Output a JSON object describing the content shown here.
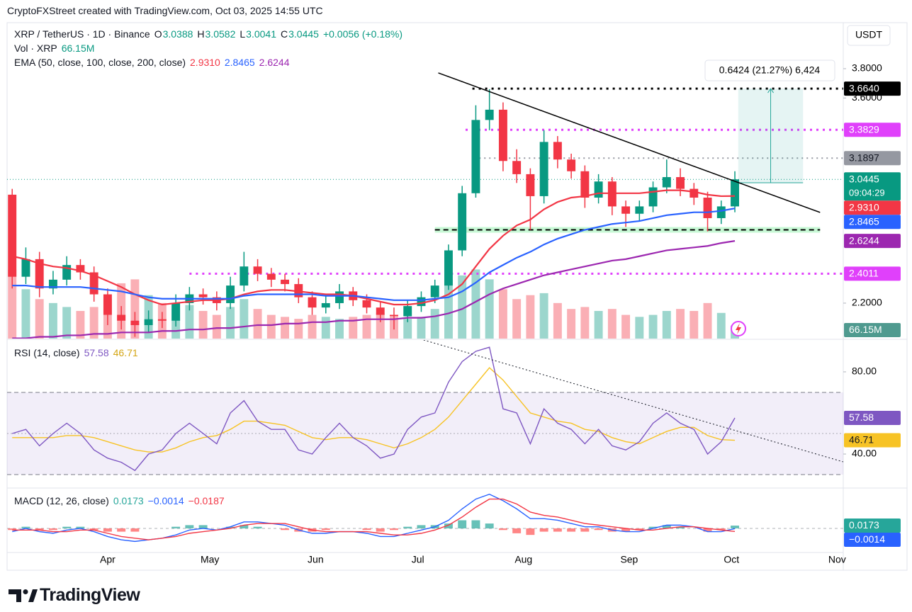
{
  "header": {
    "text": "CryptoFXStreet created with TradingView.com, Oct 03, 2025 14:55 UTC"
  },
  "footer": {
    "logo": "TradingView"
  },
  "chart_data": {
    "type": "candlestick",
    "currency": "USDT",
    "symbol": "XRP / TetherUS · 1D · Binance",
    "ohlc_legend": [
      {
        "key": "O",
        "value": "3.0388"
      },
      {
        "key": "H",
        "value": "3.0582"
      },
      {
        "key": "L",
        "value": "3.0041"
      },
      {
        "key": "C",
        "value": "3.0445"
      }
    ],
    "change": "+0.0056 (+0.18%)",
    "up_color": "#089981",
    "down_color": "#f23645",
    "x": [
      2,
      6,
      10,
      14,
      18,
      22,
      26,
      30,
      34,
      38,
      42,
      46,
      50,
      54,
      58,
      62,
      66,
      70,
      74,
      78,
      82,
      86,
      90,
      94,
      98,
      102,
      106,
      110,
      114,
      118,
      122,
      126,
      130,
      134,
      138,
      142,
      146,
      150,
      154,
      158,
      162,
      166,
      170,
      174,
      178,
      182,
      186,
      190,
      194,
      198,
      202,
      206,
      210,
      214
    ],
    "xlim": [
      0.5,
      245.8
    ],
    "xticks": [
      {
        "value": 30,
        "label": "Apr"
      },
      {
        "value": 60,
        "label": "May"
      },
      {
        "value": 91,
        "label": "Jun"
      },
      {
        "value": 121,
        "label": "Jul"
      },
      {
        "value": 152,
        "label": "Aug"
      },
      {
        "value": 183,
        "label": "Sep"
      },
      {
        "value": 213,
        "label": "Oct"
      },
      {
        "value": 244,
        "label": "Nov"
      }
    ],
    "open": [
      2.94,
      2.38,
      2.5,
      2.3,
      2.36,
      2.46,
      2.41,
      2.26,
      2.12,
      2.08,
      2.05,
      2.09,
      2.08,
      2.2,
      2.26,
      2.24,
      2.2,
      2.32,
      2.45,
      2.4,
      2.36,
      2.33,
      2.24,
      2.17,
      2.2,
      2.28,
      2.22,
      2.17,
      2.12,
      2.11,
      2.18,
      2.24,
      2.32,
      2.56,
      2.95,
      3.45,
      3.52,
      3.17,
      3.08,
      2.93,
      3.3,
      3.18,
      3.1,
      2.92,
      3.03,
      2.86,
      2.81,
      2.86,
      2.99,
      3.06,
      2.98,
      2.92,
      2.78,
      2.86
    ],
    "high": [
      2.98,
      2.58,
      2.55,
      2.42,
      2.52,
      2.5,
      2.45,
      2.3,
      2.18,
      2.14,
      2.15,
      2.14,
      2.26,
      2.31,
      2.3,
      2.28,
      2.38,
      2.55,
      2.5,
      2.44,
      2.4,
      2.37,
      2.28,
      2.25,
      2.33,
      2.31,
      2.26,
      2.21,
      2.17,
      2.22,
      2.28,
      2.36,
      2.6,
      3.0,
      3.55,
      3.66,
      3.57,
      3.25,
      3.12,
      3.38,
      3.34,
      3.22,
      3.14,
      3.08,
      3.06,
      2.9,
      2.9,
      3.03,
      3.18,
      3.12,
      3.02,
      2.96,
      2.9,
      3.1
    ],
    "low": [
      2.3,
      2.33,
      2.24,
      2.26,
      2.32,
      2.36,
      2.21,
      2.05,
      2.02,
      1.97,
      2.0,
      2.03,
      2.04,
      2.15,
      2.19,
      2.15,
      2.16,
      2.28,
      2.35,
      2.31,
      2.28,
      2.2,
      2.12,
      2.13,
      2.16,
      2.18,
      2.13,
      2.07,
      2.02,
      2.07,
      2.14,
      2.2,
      2.29,
      2.52,
      2.92,
      3.38,
      3.1,
      3.02,
      2.7,
      2.88,
      3.12,
      3.05,
      2.85,
      2.88,
      2.8,
      2.72,
      2.76,
      2.82,
      2.95,
      2.93,
      2.87,
      2.69,
      2.74,
      2.82
    ],
    "close": [
      2.38,
      2.5,
      2.3,
      2.36,
      2.46,
      2.41,
      2.26,
      2.12,
      2.08,
      2.05,
      2.09,
      2.08,
      2.2,
      2.26,
      2.24,
      2.2,
      2.32,
      2.45,
      2.4,
      2.36,
      2.33,
      2.24,
      2.17,
      2.2,
      2.28,
      2.22,
      2.17,
      2.12,
      2.11,
      2.18,
      2.24,
      2.32,
      2.56,
      2.95,
      3.45,
      3.52,
      3.17,
      3.08,
      2.93,
      3.3,
      3.18,
      3.1,
      2.92,
      3.03,
      2.86,
      2.81,
      2.86,
      2.99,
      3.06,
      2.98,
      2.92,
      2.78,
      2.86,
      3.0445
    ],
    "ylim": [
      1.958,
      4.114
    ],
    "yticks": [
      {
        "value": 3.8,
        "label": "3.8000"
      },
      {
        "value": 3.6,
        "label": "3.6000"
      },
      {
        "value": 2.2,
        "label": "2.2000"
      }
    ],
    "price_tag": {
      "value": 3.0445,
      "label": "3.0445",
      "countdown": "09:04:29",
      "color": "#089981"
    },
    "volume": {
      "title": "Vol · XRP",
      "last": "66.15M",
      "ylim": [
        0,
        1600
      ],
      "values": [
        350,
        250,
        200,
        180,
        160,
        140,
        160,
        200,
        280,
        300,
        220,
        180,
        150,
        170,
        140,
        120,
        160,
        200,
        150,
        120,
        110,
        100,
        120,
        110,
        100,
        110,
        120,
        130,
        110,
        100,
        110,
        150,
        300,
        320,
        350,
        300,
        250,
        200,
        220,
        230,
        180,
        150,
        160,
        140,
        150,
        120,
        110,
        120,
        140,
        150,
        140,
        180,
        130,
        66.15
      ]
    },
    "ema": {
      "title": "EMA (50, close, 100, close, 200, close)",
      "series": [
        {
          "color": "#f23645",
          "last": {
            "value": 2.931,
            "label": "2.9310"
          },
          "values": [
            2.52,
            2.5,
            2.47,
            2.45,
            2.44,
            2.42,
            2.39,
            2.35,
            2.31,
            2.26,
            2.22,
            2.19,
            2.2,
            2.21,
            2.22,
            2.22,
            2.23,
            2.26,
            2.28,
            2.29,
            2.29,
            2.28,
            2.27,
            2.26,
            2.26,
            2.25,
            2.23,
            2.21,
            2.19,
            2.19,
            2.2,
            2.22,
            2.26,
            2.33,
            2.45,
            2.57,
            2.66,
            2.73,
            2.77,
            2.84,
            2.89,
            2.92,
            2.93,
            2.95,
            2.95,
            2.95,
            2.95,
            2.96,
            2.97,
            2.97,
            2.96,
            2.94,
            2.93,
            2.931
          ]
        },
        {
          "color": "#2962ff",
          "last": {
            "value": 2.8465,
            "label": "2.8465"
          },
          "values": [
            2.32,
            2.32,
            2.31,
            2.31,
            2.31,
            2.31,
            2.3,
            2.29,
            2.28,
            2.26,
            2.24,
            2.23,
            2.23,
            2.23,
            2.23,
            2.23,
            2.23,
            2.25,
            2.26,
            2.26,
            2.26,
            2.26,
            2.26,
            2.25,
            2.25,
            2.25,
            2.24,
            2.23,
            2.22,
            2.22,
            2.22,
            2.23,
            2.24,
            2.28,
            2.34,
            2.41,
            2.46,
            2.51,
            2.55,
            2.6,
            2.64,
            2.67,
            2.7,
            2.72,
            2.74,
            2.75,
            2.76,
            2.78,
            2.8,
            2.81,
            2.82,
            2.82,
            2.83,
            2.8465
          ]
        },
        {
          "color": "#9c27b0",
          "last": {
            "value": 2.6244,
            "label": "2.6244"
          },
          "values": [
            1.96,
            1.96,
            1.97,
            1.97,
            1.98,
            1.98,
            1.99,
            1.99,
            2.0,
            2.0,
            2.0,
            2.01,
            2.01,
            2.02,
            2.02,
            2.03,
            2.03,
            2.04,
            2.05,
            2.05,
            2.06,
            2.06,
            2.07,
            2.07,
            2.08,
            2.08,
            2.09,
            2.09,
            2.09,
            2.1,
            2.1,
            2.11,
            2.13,
            2.16,
            2.21,
            2.26,
            2.3,
            2.33,
            2.36,
            2.39,
            2.41,
            2.43,
            2.45,
            2.47,
            2.49,
            2.5,
            2.52,
            2.54,
            2.56,
            2.57,
            2.58,
            2.59,
            2.61,
            2.6244
          ]
        }
      ]
    },
    "levels": [
      {
        "value": 3.664,
        "label": "3.6640",
        "color": "#000000",
        "text_color": "#ffffff",
        "start": 137
      },
      {
        "value": 3.3829,
        "label": "3.3829",
        "color": "#e040fb",
        "text_color": "#ffffff",
        "start": 135
      },
      {
        "value": 3.1897,
        "label": "3.1897",
        "color": "#9598a1",
        "text_color": "#131722",
        "start": 139
      },
      {
        "value": 2.4011,
        "label": "2.4011",
        "color": "#e040fb",
        "text_color": "#ffffff",
        "start": 54
      }
    ],
    "support": {
      "value": 2.7,
      "x": [
        126,
        239
      ]
    },
    "trendline": {
      "x": [
        127,
        239
      ],
      "y": [
        3.771,
        2.819
      ]
    },
    "measure": {
      "x": [
        215,
        234
      ],
      "y": [
        3.0216,
        3.664
      ],
      "label": "0.6424 (21.27%) 6,424"
    },
    "rsi": {
      "title": "RSI (14, close)",
      "ylim": [
        23.8,
        95.5
      ],
      "yticks": [
        {
          "value": 80,
          "label": "80.00"
        },
        {
          "value": 40,
          "label": "40.00"
        }
      ],
      "bands": [
        30,
        50,
        70
      ],
      "trendline": {
        "x": [
          122.7,
          245.8
        ],
        "y": [
          95.5,
          36.2
        ]
      },
      "series": [
        {
          "color": "#7e57c2",
          "last": {
            "value": 57.58,
            "label": "57.58"
          },
          "values": [
            50,
            52,
            44,
            50,
            55,
            50,
            42,
            38,
            36,
            32,
            40,
            42,
            50,
            55,
            50,
            45,
            60,
            66,
            56,
            52,
            52,
            42,
            40,
            48,
            55,
            48,
            44,
            38,
            40,
            52,
            58,
            60,
            75,
            85,
            90,
            92,
            62,
            60,
            45,
            62,
            55,
            52,
            45,
            52,
            44,
            42,
            46,
            55,
            60,
            55,
            52,
            40,
            46,
            57.58
          ]
        },
        {
          "color": "#f7c325",
          "last": {
            "value": 46.71,
            "label": "46.71"
          },
          "values": [
            48,
            48,
            48,
            48,
            49,
            49,
            48,
            46,
            44,
            42,
            41,
            41,
            43,
            46,
            48,
            49,
            52,
            56,
            56,
            55,
            54,
            51,
            48,
            47,
            48,
            48,
            47,
            45,
            43,
            45,
            48,
            52,
            58,
            66,
            74,
            82,
            76,
            68,
            60,
            58,
            56,
            55,
            52,
            51,
            48,
            46,
            45,
            48,
            51,
            53,
            53,
            49,
            47,
            46.71
          ]
        }
      ]
    },
    "macd": {
      "title": "MACD (12, 26, close)",
      "ylim": [
        -0.148,
        0.2435
      ],
      "histogram": {
        "up_color": "#26a69a",
        "down_color": "#ff5252",
        "last": {
          "value": 0.0173,
          "label": "0.0173"
        },
        "values": [
          -0.01,
          0.01,
          -0.01,
          -0.01,
          0.01,
          0.01,
          -0.01,
          -0.02,
          -0.02,
          -0.02,
          0.0,
          0.0,
          0.01,
          0.02,
          0.02,
          0.0,
          0.01,
          0.02,
          0.01,
          0.0,
          -0.01,
          -0.02,
          -0.02,
          -0.01,
          0.0,
          0.0,
          -0.01,
          -0.02,
          -0.01,
          0.01,
          0.02,
          0.02,
          0.03,
          0.05,
          0.05,
          0.03,
          -0.01,
          -0.03,
          -0.04,
          -0.02,
          -0.02,
          -0.02,
          -0.02,
          -0.01,
          -0.02,
          -0.02,
          -0.01,
          0.01,
          0.02,
          0.01,
          0.0,
          -0.02,
          -0.01,
          0.0173
        ]
      },
      "series": [
        {
          "color": "#2962ff",
          "last": {
            "value": -0.0014,
            "label": "−0.0014"
          },
          "values": [
            -0.02,
            0.0,
            -0.02,
            -0.03,
            -0.01,
            0.0,
            -0.02,
            -0.05,
            -0.07,
            -0.08,
            -0.07,
            -0.06,
            -0.04,
            -0.01,
            0.0,
            -0.01,
            0.01,
            0.04,
            0.04,
            0.03,
            0.02,
            -0.01,
            -0.03,
            -0.03,
            -0.02,
            -0.02,
            -0.03,
            -0.05,
            -0.05,
            -0.03,
            -0.01,
            0.01,
            0.05,
            0.12,
            0.18,
            0.21,
            0.17,
            0.12,
            0.06,
            0.06,
            0.05,
            0.03,
            0.01,
            0.01,
            -0.01,
            -0.02,
            -0.02,
            0.0,
            0.02,
            0.02,
            0.01,
            -0.02,
            -0.02,
            -0.0014
          ]
        },
        {
          "color": "#f23645",
          "last": {
            "value": -0.0187,
            "label": "−0.0187"
          },
          "values": [
            -0.01,
            -0.01,
            -0.01,
            -0.02,
            -0.02,
            -0.01,
            -0.01,
            -0.03,
            -0.05,
            -0.06,
            -0.07,
            -0.06,
            -0.05,
            -0.03,
            -0.02,
            -0.01,
            0.0,
            0.02,
            0.03,
            0.03,
            0.03,
            0.01,
            -0.01,
            -0.02,
            -0.02,
            -0.02,
            -0.02,
            -0.03,
            -0.04,
            -0.04,
            -0.03,
            -0.01,
            0.02,
            0.07,
            0.13,
            0.18,
            0.18,
            0.15,
            0.1,
            0.08,
            0.07,
            0.05,
            0.03,
            0.02,
            0.01,
            0.0,
            -0.01,
            -0.01,
            0.0,
            0.01,
            0.01,
            0.0,
            -0.01,
            -0.0187
          ]
        }
      ]
    }
  }
}
